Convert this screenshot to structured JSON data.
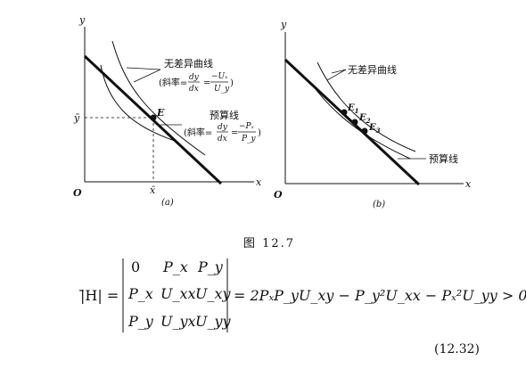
{
  "panel_a": {
    "y_axis": "y",
    "x_axis": "x",
    "origin": "O",
    "ybar": "ȳ",
    "xbar": "x̄",
    "point": "E",
    "indiff_label": "无差异曲线",
    "indiff_slope_prefix": "(斜率=",
    "indiff_slope_num": "dy",
    "indiff_slope_den": "dx",
    "indiff_slope_eq": "=",
    "indiff_slope_num2": "−Uₓ",
    "indiff_slope_den2": "U_y",
    "indiff_slope_suffix": ")",
    "budget_label": "预算线",
    "budget_slope_prefix": "(斜率=",
    "budget_slope_num": "dy",
    "budget_slope_den": "dx",
    "budget_slope_eq": "=",
    "budget_slope_num2": "−Pₓ",
    "budget_slope_den2": "P_y",
    "budget_slope_suffix": ")",
    "caption": "(a)"
  },
  "panel_b": {
    "y_axis": "y",
    "x_axis": "x",
    "origin": "O",
    "indiff_label": "无差异曲线",
    "e1": "E",
    "e1_sub": "1",
    "e2": "E",
    "e2_sub": "2",
    "e3": "E",
    "e3_sub": "3",
    "budget_label": "预算线",
    "caption": "(b)"
  },
  "figure_caption": "图 12.7",
  "equation": {
    "lhs": "|̄H| =",
    "matrix": [
      [
        "0",
        "P_x",
        "P_y"
      ],
      [
        "P_x",
        "U_xx",
        "U_xy"
      ],
      [
        "P_y",
        "U_yx",
        "U_yy"
      ]
    ],
    "rhs": "= 2PₓP_yU_xy − P_y²U_xx − Pₓ²U_yy > 0",
    "number": "(12.32)"
  }
}
